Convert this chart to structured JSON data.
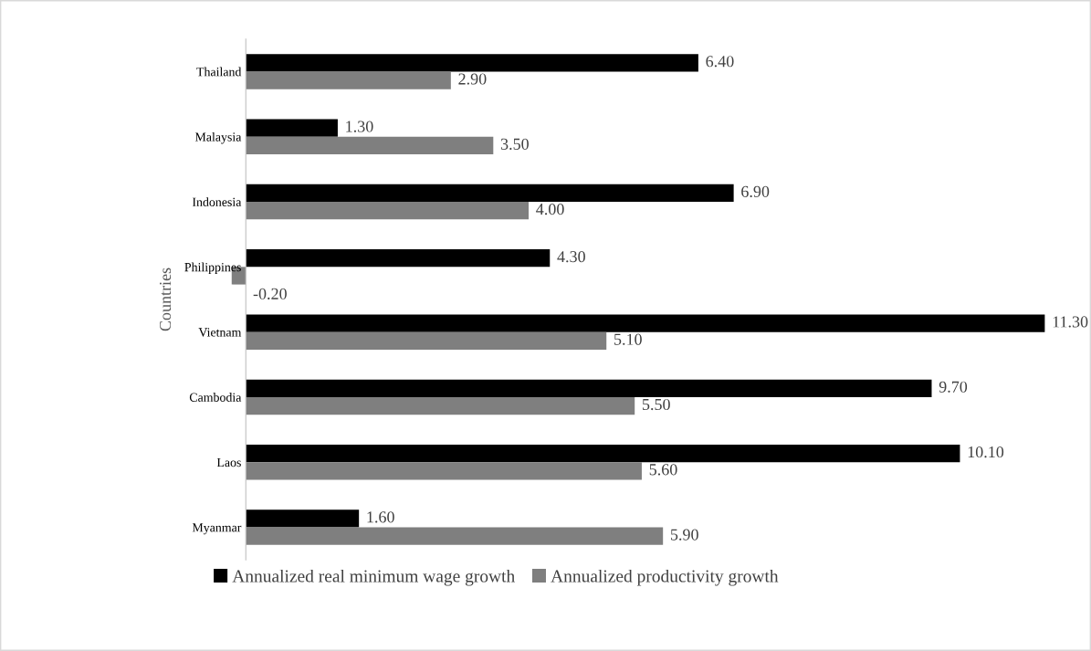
{
  "chart_data": {
    "type": "bar",
    "orientation": "horizontal",
    "ylabel": "Countries",
    "legend": "bottom",
    "grid": false,
    "tick_labels": "y",
    "categories": [
      "Thailand",
      "Malaysia",
      "Indonesia",
      "Philippines",
      "Vietnam",
      "Cambodia",
      "Laos",
      "Myanmar"
    ],
    "series": [
      {
        "name": "Annualized real minimum wage growth",
        "color": "#000000",
        "values": [
          6.4,
          1.3,
          6.9,
          4.3,
          11.3,
          9.7,
          10.1,
          1.6
        ],
        "value_labels": [
          "6.40",
          "1.30",
          "6.90",
          "4.30",
          "11.30",
          "9.70",
          "10.10",
          "1.60"
        ]
      },
      {
        "name": "Annualized productivity growth",
        "color": "#7f7f7f",
        "values": [
          2.9,
          3.5,
          4.0,
          -0.2,
          5.1,
          5.5,
          5.6,
          5.9
        ],
        "value_labels": [
          "2.90",
          "3.50",
          "4.00",
          "-0.20",
          "5.10",
          "5.50",
          "5.60",
          "5.90"
        ]
      }
    ]
  }
}
